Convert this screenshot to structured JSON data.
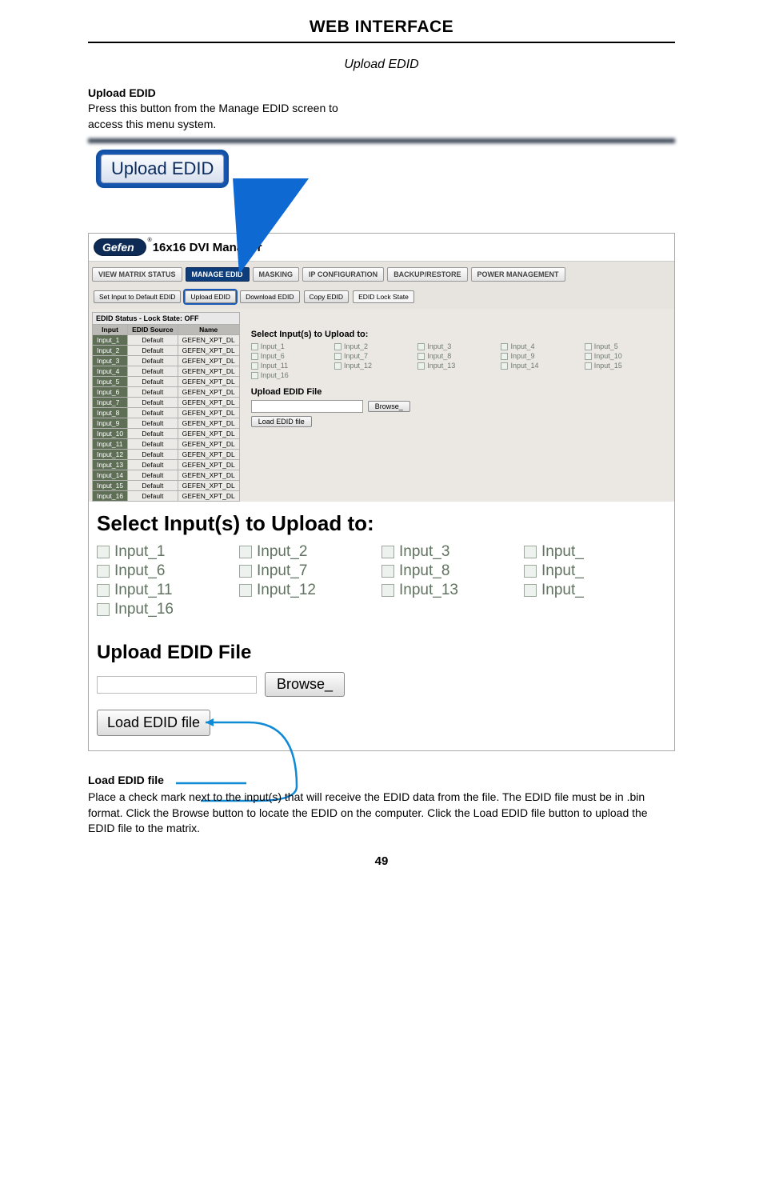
{
  "page": {
    "header": "WEB INTERFACE",
    "subtitle": "Upload EDID",
    "upload_edid_head": "Upload EDID",
    "upload_edid_desc1": "Press this button from the Manage EDID screen to",
    "upload_edid_desc2": "access this menu system.",
    "big_button_label": "Upload EDID",
    "brand": "Gefen",
    "brand_title": "16x16 DVI Manager",
    "nav": {
      "view": "VIEW MATRIX STATUS",
      "manage": "MANAGE EDID",
      "masking": "MASKING",
      "ipconf": "IP CONFIGURATION",
      "backup": "BACKUP/RESTORE",
      "power": "POWER MANAGEMENT"
    },
    "subnav": {
      "setdef": "Set Input to Default EDID",
      "upload": "Upload EDID",
      "download": "Download EDID",
      "copy": "Copy EDID",
      "lock": "EDID Lock State"
    },
    "table": {
      "caption": "EDID Status - Lock State: OFF",
      "h_input": "Input",
      "h_source": "EDID Source",
      "h_name": "Name",
      "rows": [
        [
          "Input_1",
          "Default",
          "GEFEN_XPT_DL"
        ],
        [
          "Input_2",
          "Default",
          "GEFEN_XPT_DL"
        ],
        [
          "Input_3",
          "Default",
          "GEFEN_XPT_DL"
        ],
        [
          "Input_4",
          "Default",
          "GEFEN_XPT_DL"
        ],
        [
          "Input_5",
          "Default",
          "GEFEN_XPT_DL"
        ],
        [
          "Input_6",
          "Default",
          "GEFEN_XPT_DL"
        ],
        [
          "Input_7",
          "Default",
          "GEFEN_XPT_DL"
        ],
        [
          "Input_8",
          "Default",
          "GEFEN_XPT_DL"
        ],
        [
          "Input_9",
          "Default",
          "GEFEN_XPT_DL"
        ],
        [
          "Input_10",
          "Default",
          "GEFEN_XPT_DL"
        ],
        [
          "Input_11",
          "Default",
          "GEFEN_XPT_DL"
        ],
        [
          "Input_12",
          "Default",
          "GEFEN_XPT_DL"
        ],
        [
          "Input_13",
          "Default",
          "GEFEN_XPT_DL"
        ],
        [
          "Input_14",
          "Default",
          "GEFEN_XPT_DL"
        ],
        [
          "Input_15",
          "Default",
          "GEFEN_XPT_DL"
        ],
        [
          "Input_16",
          "Default",
          "GEFEN_XPT_DL"
        ]
      ]
    },
    "rp": {
      "title": "Select Input(s) to Upload to:",
      "inputs": [
        "Input_1",
        "Input_2",
        "Input_3",
        "Input_4",
        "Input_5",
        "Input_6",
        "Input_7",
        "Input_8",
        "Input_9",
        "Input_10",
        "Input_11",
        "Input_12",
        "Input_13",
        "Input_14",
        "Input_15",
        "Input_16"
      ],
      "upload_head": "Upload EDID File",
      "browse": "Browse_",
      "load": "Load EDID file"
    },
    "inset": {
      "title": "Select Input(s) to Upload to:",
      "items": [
        "Input_1",
        "Input_2",
        "Input_3",
        "Input_",
        "Input_6",
        "Input_7",
        "Input_8",
        "Input_",
        "Input_11",
        "Input_12",
        "Input_13",
        "Input_",
        "Input_16"
      ],
      "upload_head": "Upload EDID File",
      "browse": "Browse_",
      "load": "Load EDID file"
    },
    "footer": {
      "load_head": "Load EDID file",
      "desc": "Place a check mark next to the input(s) that will receive the EDID data from the file.  The EDID file must be in .bin format.  Click the Browse button to locate the EDID on the computer.  Click the Load EDID file button to upload the EDID file to the matrix."
    },
    "page_number": "49"
  }
}
